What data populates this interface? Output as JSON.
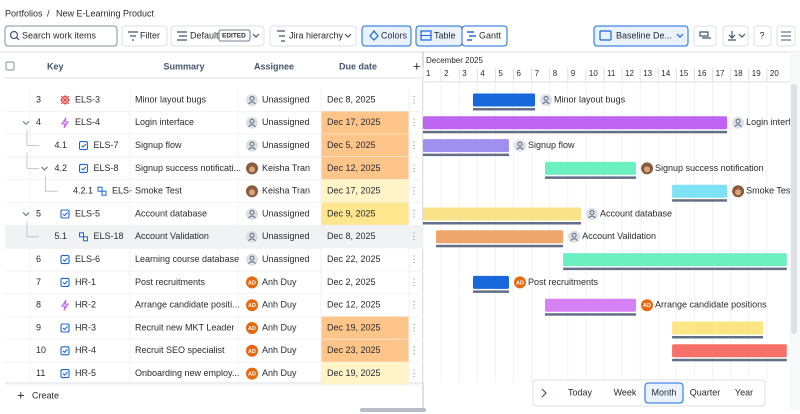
{
  "breadcrumb": [
    "Portfolios",
    "New E-Learning Product"
  ],
  "breadcrumb_separator": "/",
  "toolbar": {
    "search_placeholder": "Search work items",
    "filter": "Filter",
    "view": "Default",
    "view_badge": "EDITED",
    "hierarchy": "Jira hierarchy",
    "colors": "Colors",
    "table": "Table",
    "gantt": "Gantt",
    "baseline": "Baseline De...",
    "help": "?"
  },
  "table": {
    "headers": {
      "key": "Key",
      "summary": "Summary",
      "assignee": "Assignee",
      "due": "Due date"
    },
    "rows": [
      {
        "num": "3",
        "level": 0,
        "expandable": false,
        "issue_type": "bug",
        "key": "ELS-3",
        "summary": "Minor layout bugs",
        "assignee": "Unassigned",
        "avatar": "none",
        "due": "Dec 8, 2025",
        "due_color": "#ffffff",
        "bar": {
          "start": 3.76,
          "end": 7.19,
          "color": "#1868db",
          "label": "Minor layout bugs"
        }
      },
      {
        "num": "4",
        "level": 0,
        "expandable": true,
        "issue_type": "epic",
        "key": "ELS-4",
        "summary": "Login interface",
        "assignee": "Unassigned",
        "avatar": "none",
        "due": "Dec 17, 2025",
        "due_color": "#fdc58a",
        "bar": {
          "start": 1,
          "end": 17.8,
          "color": "#bf63f3",
          "label": "Login interface"
        }
      },
      {
        "num": "4.1",
        "level": 1,
        "expandable": false,
        "issue_type": "task",
        "key": "ELS-7",
        "summary": "Signup flow",
        "assignee": "Unassigned",
        "avatar": "none",
        "due": "Dec 5, 2025",
        "due_color": "#fdc58a",
        "bar": {
          "start": 1,
          "end": 5.75,
          "color": "#9f8fef",
          "label": "Signup flow"
        }
      },
      {
        "num": "4.2",
        "level": 1,
        "expandable": true,
        "issue_type": "task",
        "key": "ELS-8",
        "summary": "Signup success notificati...",
        "assignee": "Keisha Tran",
        "avatar": "photo",
        "due": "Dec 12, 2025",
        "due_color": "#fdc58a",
        "bar": {
          "start": 7.74,
          "end": 12.77,
          "color": "#6cf0c2",
          "label": "Signup success notification"
        }
      },
      {
        "num": "4.2.1",
        "level": 2,
        "expandable": false,
        "issue_type": "subtask",
        "key": "ELS-",
        "summary": "Smoke Test",
        "assignee": "Keisha Tran",
        "avatar": "photo",
        "due": "Dec 17, 2025",
        "due_color": "#fef4c8",
        "bar": {
          "start": 14.76,
          "end": 17.8,
          "color": "#7ee2f5",
          "label": "Smoke Test"
        }
      },
      {
        "num": "5",
        "level": 0,
        "expandable": true,
        "issue_type": "task",
        "key": "ELS-5",
        "summary": "Account database",
        "assignee": "Unassigned",
        "avatar": "none",
        "due": "Dec 9, 2025",
        "due_color": "#fde68d",
        "bar": {
          "start": 1,
          "end": 9.73,
          "color": "#f8e38a",
          "label": "Account database"
        }
      },
      {
        "num": "5.1",
        "level": 1,
        "expandable": false,
        "issue_type": "subtask",
        "key": "ELS-18",
        "summary": "Account Validation",
        "assignee": "Unassigned",
        "avatar": "none",
        "due": "Dec 8, 2025",
        "due_color": "#f1f2f4",
        "highlighted": true,
        "bar": {
          "start": 1.72,
          "end": 8.74,
          "color": "#f0a56b",
          "label": "Account Validation"
        }
      },
      {
        "num": "6",
        "level": 0,
        "expandable": false,
        "issue_type": "task",
        "key": "ELS-6",
        "summary": "Learning course database",
        "assignee": "Unassigned",
        "avatar": "none",
        "due": "Dec 22, 2025",
        "due_color": "#ffffff",
        "bar": {
          "start": 8.74,
          "end": 21.1,
          "color": "#6cf0c2"
        }
      },
      {
        "num": "7",
        "level": 0,
        "expandable": false,
        "issue_type": "task",
        "key": "HR-1",
        "summary": "Post recruitments",
        "assignee": "Anh Duy",
        "avatar": "initials",
        "initials": "AD",
        "due": "Dec 2, 2025",
        "due_color": "#ffffff",
        "bar": {
          "start": 3.76,
          "end": 5.75,
          "color": "#1868db",
          "label": "Post recruitments"
        }
      },
      {
        "num": "8",
        "level": 0,
        "expandable": false,
        "issue_type": "epic",
        "key": "HR-2",
        "summary": "Arrange candidate positi...",
        "assignee": "Anh Duy",
        "avatar": "initials",
        "initials": "AD",
        "due": "Dec 12, 2025",
        "due_color": "#ffffff",
        "bar": {
          "start": 7.74,
          "end": 12.77,
          "color": "#d580f5",
          "label": "Arrange candidate positions"
        }
      },
      {
        "num": "9",
        "level": 0,
        "expandable": false,
        "issue_type": "task",
        "key": "HR-3",
        "summary": "Recruit new MKT Leader",
        "assignee": "Anh Duy",
        "avatar": "initials",
        "initials": "AD",
        "due": "Dec 19, 2025",
        "due_color": "#fdc58a",
        "bar": {
          "start": 14.76,
          "end": 19.79,
          "color": "#fce683"
        }
      },
      {
        "num": "10",
        "level": 0,
        "expandable": false,
        "issue_type": "task",
        "key": "HR-4",
        "summary": "Recruit SEO specialist",
        "assignee": "Anh Duy",
        "avatar": "initials",
        "initials": "AD",
        "due": "Dec 23, 2025",
        "due_color": "#fdc58a",
        "bar": {
          "start": 14.76,
          "end": 21.1,
          "color": "#f87168"
        }
      },
      {
        "num": "11",
        "level": 0,
        "expandable": false,
        "issue_type": "task",
        "key": "HR-5",
        "summary": "Onboarding new employ...",
        "assignee": "Anh Duy",
        "avatar": "initials",
        "initials": "AD",
        "due": "Dec 19, 2025",
        "due_color": "#fef4c8"
      }
    ]
  },
  "create": "Create",
  "gantt": {
    "month": "December 2025",
    "days": [
      1,
      2,
      3,
      4,
      5,
      6,
      7,
      8,
      9,
      10,
      11,
      12,
      13,
      14,
      15,
      16,
      17,
      18,
      19,
      20
    ]
  },
  "zoom": {
    "options": [
      "Today",
      "Week",
      "Month",
      "Quarter",
      "Year"
    ],
    "selected": 2
  }
}
